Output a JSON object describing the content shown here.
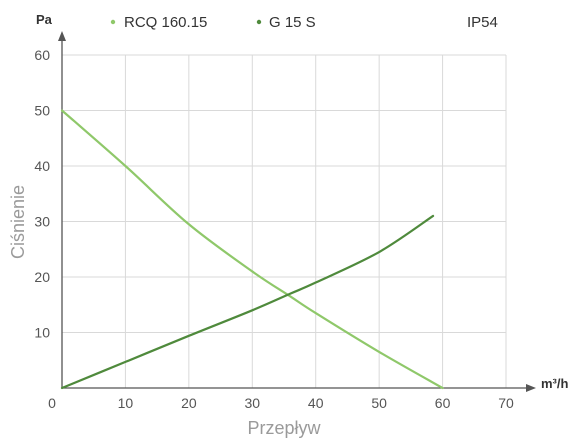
{
  "chart_data": {
    "type": "line",
    "xlabel": "Przepływ",
    "ylabel": "Ciśnienie",
    "x_unit": "m³/h",
    "y_unit": "Pa",
    "xlim": [
      0,
      70
    ],
    "ylim": [
      0,
      60
    ],
    "x_ticks": [
      0,
      10,
      20,
      30,
      40,
      50,
      60,
      70
    ],
    "y_ticks": [
      10,
      20,
      30,
      40,
      50,
      60
    ],
    "grid": true,
    "legend_position": "top",
    "annotation": "IP54",
    "series": [
      {
        "name": "RCQ 160.15",
        "color": "#8fc86a",
        "x": [
          0,
          10,
          20,
          30,
          36,
          40,
          50,
          60
        ],
        "y": [
          50,
          40,
          29.5,
          21,
          16.5,
          13.5,
          6.5,
          0
        ]
      },
      {
        "name": "G 15 S",
        "color": "#4f8a3c",
        "x": [
          0,
          10,
          20,
          30,
          36,
          40,
          50,
          58.5
        ],
        "y": [
          0,
          4.7,
          9.4,
          14,
          17,
          19,
          24.5,
          31
        ]
      }
    ]
  }
}
